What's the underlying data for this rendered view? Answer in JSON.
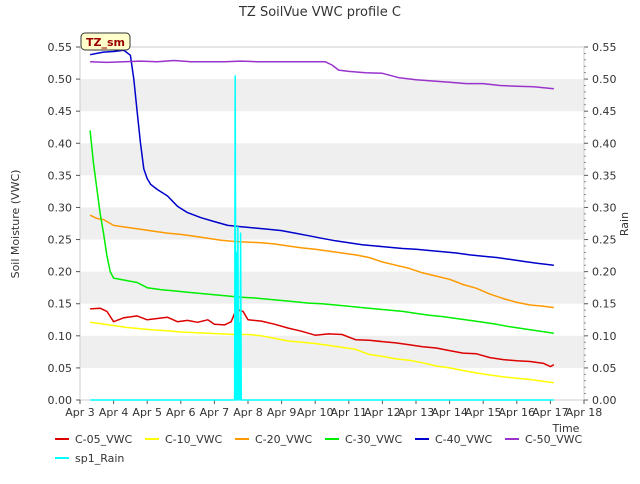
{
  "chart_data": {
    "type": "line",
    "title": "TZ SoilVue VWC profile C",
    "xlabel": "Time",
    "ylabel": "Soil Moisture (VWC)",
    "y2label": "Rain",
    "badge": "TZ_sm",
    "x_unit": "day of April",
    "xlim": [
      3,
      18
    ],
    "ylim": [
      0,
      0.55
    ],
    "y2lim": [
      0,
      0.55
    ],
    "x_ticks": [
      3,
      4,
      5,
      6,
      7,
      8,
      9,
      10,
      11,
      12,
      13,
      14,
      15,
      16,
      17,
      18
    ],
    "x_tick_labels": [
      "Apr 3",
      "Apr 4",
      "Apr 5",
      "Apr 6",
      "Apr 7",
      "Apr 8",
      "Apr 9",
      "Apr 10",
      "Apr 11",
      "Apr 12",
      "Apr 13",
      "Apr 14",
      "Apr 15",
      "Apr 16",
      "Apr 17",
      "Apr 18"
    ],
    "y_ticks": [
      0,
      0.05,
      0.1,
      0.15,
      0.2,
      0.25,
      0.3,
      0.35,
      0.4,
      0.45,
      0.5,
      0.55
    ],
    "y_tick_labels": [
      "0.00",
      "0.05",
      "0.10",
      "0.15",
      "0.20",
      "0.25",
      "0.30",
      "0.35",
      "0.40",
      "0.45",
      "0.50",
      "0.55"
    ],
    "grid": "horizontal bands",
    "legend_position": "bottom",
    "series": [
      {
        "name": "C-05_VWC",
        "color": "#dd0000",
        "x": [
          3.3,
          3.6,
          3.8,
          4.0,
          4.3,
          4.7,
          5.0,
          5.3,
          5.6,
          5.9,
          6.2,
          6.5,
          6.8,
          7.0,
          7.3,
          7.5,
          7.6,
          7.75,
          7.85,
          8.0,
          8.4,
          8.8,
          9.2,
          9.6,
          10.0,
          10.4,
          10.8,
          11.2,
          11.6,
          12.0,
          12.4,
          12.8,
          13.2,
          13.6,
          14.0,
          14.4,
          14.8,
          15.2,
          15.6,
          16.0,
          16.4,
          16.8,
          17.0,
          17.1
        ],
        "y": [
          0.142,
          0.143,
          0.138,
          0.122,
          0.128,
          0.131,
          0.125,
          0.127,
          0.129,
          0.122,
          0.124,
          0.121,
          0.125,
          0.118,
          0.117,
          0.122,
          0.135,
          0.14,
          0.138,
          0.125,
          0.123,
          0.118,
          0.112,
          0.107,
          0.101,
          0.103,
          0.102,
          0.094,
          0.093,
          0.091,
          0.089,
          0.086,
          0.083,
          0.081,
          0.077,
          0.073,
          0.072,
          0.066,
          0.063,
          0.061,
          0.06,
          0.057,
          0.052,
          0.055
        ]
      },
      {
        "name": "C-10_VWC",
        "color": "#ffff00",
        "x": [
          3.3,
          3.6,
          4.0,
          4.4,
          4.8,
          5.2,
          5.6,
          6.0,
          6.4,
          6.8,
          7.2,
          7.6,
          8.0,
          8.4,
          8.8,
          9.2,
          9.6,
          10.0,
          10.4,
          10.8,
          11.2,
          11.6,
          12.0,
          12.4,
          12.8,
          13.2,
          13.6,
          14.0,
          14.4,
          14.8,
          15.2,
          15.6,
          16.0,
          16.4,
          16.8,
          17.1
        ],
        "y": [
          0.121,
          0.119,
          0.116,
          0.113,
          0.111,
          0.109,
          0.108,
          0.106,
          0.105,
          0.104,
          0.103,
          0.102,
          0.102,
          0.1,
          0.096,
          0.092,
          0.09,
          0.088,
          0.085,
          0.082,
          0.079,
          0.071,
          0.068,
          0.064,
          0.062,
          0.058,
          0.053,
          0.05,
          0.046,
          0.042,
          0.039,
          0.036,
          0.034,
          0.032,
          0.029,
          0.027
        ]
      },
      {
        "name": "C-20_VWC",
        "color": "#ff9900",
        "x": [
          3.3,
          3.5,
          3.7,
          4.0,
          4.4,
          4.8,
          5.2,
          5.6,
          6.0,
          6.4,
          6.8,
          7.2,
          7.6,
          8.0,
          8.4,
          8.8,
          9.2,
          9.6,
          10.0,
          10.4,
          10.8,
          11.2,
          11.6,
          12.0,
          12.4,
          12.8,
          13.2,
          13.6,
          14.0,
          14.4,
          14.8,
          15.2,
          15.6,
          16.0,
          16.4,
          16.8,
          17.1
        ],
        "y": [
          0.288,
          0.283,
          0.281,
          0.272,
          0.269,
          0.266,
          0.263,
          0.26,
          0.258,
          0.255,
          0.252,
          0.249,
          0.247,
          0.246,
          0.245,
          0.243,
          0.24,
          0.237,
          0.235,
          0.232,
          0.229,
          0.226,
          0.222,
          0.215,
          0.21,
          0.205,
          0.198,
          0.193,
          0.188,
          0.18,
          0.174,
          0.165,
          0.158,
          0.152,
          0.148,
          0.146,
          0.144
        ]
      },
      {
        "name": "C-30_VWC",
        "color": "#00ee00",
        "x": [
          3.3,
          3.4,
          3.5,
          3.6,
          3.7,
          3.8,
          3.9,
          4.0,
          4.3,
          4.7,
          5.0,
          5.4,
          5.8,
          6.2,
          6.6,
          7.0,
          7.4,
          7.8,
          8.2,
          8.6,
          9.0,
          9.4,
          9.8,
          10.2,
          10.6,
          11.0,
          11.4,
          11.8,
          12.2,
          12.6,
          13.0,
          13.4,
          13.8,
          14.2,
          14.6,
          15.0,
          15.4,
          15.8,
          16.2,
          16.6,
          17.1
        ],
        "y": [
          0.42,
          0.37,
          0.33,
          0.29,
          0.26,
          0.225,
          0.2,
          0.19,
          0.187,
          0.183,
          0.175,
          0.172,
          0.17,
          0.168,
          0.166,
          0.164,
          0.162,
          0.16,
          0.159,
          0.157,
          0.155,
          0.153,
          0.151,
          0.15,
          0.148,
          0.146,
          0.144,
          0.142,
          0.14,
          0.138,
          0.135,
          0.132,
          0.13,
          0.127,
          0.124,
          0.121,
          0.118,
          0.114,
          0.111,
          0.108,
          0.104
        ]
      },
      {
        "name": "C-40_VWC",
        "color": "#0000cc",
        "x": [
          3.3,
          3.5,
          3.7,
          4.0,
          4.3,
          4.5,
          4.6,
          4.7,
          4.8,
          4.9,
          5.0,
          5.1,
          5.3,
          5.6,
          5.9,
          6.2,
          6.6,
          7.0,
          7.4,
          7.8,
          8.2,
          8.6,
          9.0,
          9.4,
          9.8,
          10.2,
          10.6,
          11.0,
          11.4,
          11.8,
          12.2,
          12.6,
          13.0,
          13.4,
          13.8,
          14.2,
          14.6,
          15.0,
          15.4,
          15.8,
          16.2,
          16.6,
          17.1
        ],
        "y": [
          0.538,
          0.54,
          0.542,
          0.543,
          0.545,
          0.537,
          0.5,
          0.45,
          0.4,
          0.36,
          0.345,
          0.336,
          0.328,
          0.318,
          0.302,
          0.292,
          0.284,
          0.278,
          0.272,
          0.27,
          0.268,
          0.266,
          0.264,
          0.26,
          0.256,
          0.252,
          0.248,
          0.245,
          0.242,
          0.24,
          0.238,
          0.236,
          0.235,
          0.233,
          0.231,
          0.229,
          0.226,
          0.224,
          0.222,
          0.219,
          0.216,
          0.213,
          0.21
        ]
      },
      {
        "name": "C-50_VWC",
        "color": "#9933cc",
        "x": [
          3.3,
          3.8,
          4.3,
          4.8,
          5.3,
          5.8,
          6.3,
          6.8,
          7.3,
          7.8,
          8.3,
          8.8,
          9.3,
          9.8,
          10.3,
          10.5,
          10.7,
          11.0,
          11.5,
          12.0,
          12.5,
          13.0,
          13.5,
          14.0,
          14.5,
          15.0,
          15.5,
          16.0,
          16.5,
          17.1
        ],
        "y": [
          0.527,
          0.526,
          0.527,
          0.528,
          0.527,
          0.529,
          0.527,
          0.527,
          0.527,
          0.528,
          0.527,
          0.527,
          0.527,
          0.527,
          0.527,
          0.522,
          0.514,
          0.512,
          0.51,
          0.509,
          0.502,
          0.499,
          0.497,
          0.495,
          0.493,
          0.493,
          0.49,
          0.489,
          0.488,
          0.485
        ]
      },
      {
        "name": "sp1_Rain",
        "color": "#00ffff",
        "axis": "right",
        "x": [
          3.3,
          7.6,
          7.62,
          7.64,
          7.66,
          7.68,
          7.7,
          7.72,
          7.74,
          7.76,
          7.78,
          7.8,
          7.82,
          17.1
        ],
        "y": [
          0.0,
          0.0,
          0.505,
          0.0,
          0.23,
          0.0,
          0.27,
          0.0,
          0.12,
          0.0,
          0.26,
          0.0,
          0.0,
          0.0
        ]
      }
    ]
  }
}
